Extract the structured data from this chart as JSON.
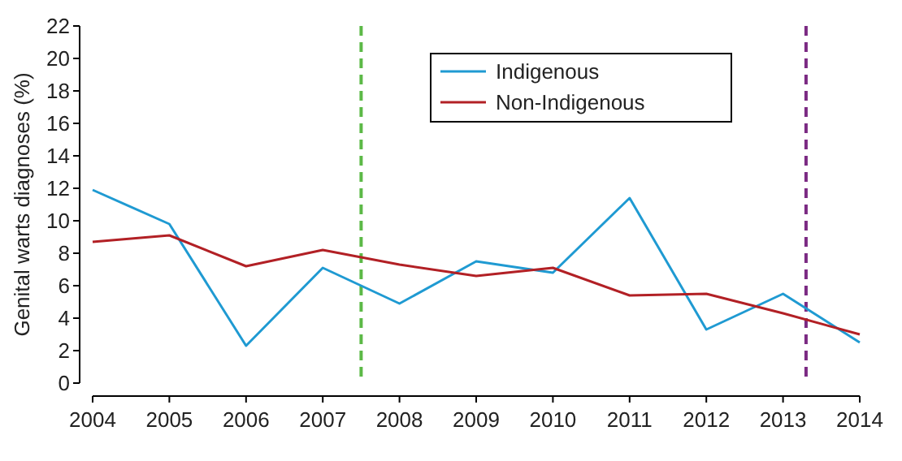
{
  "chart_data": {
    "type": "line",
    "ylabel": "Genital warts diagnoses (%)",
    "x": [
      2004,
      2005,
      2006,
      2007,
      2008,
      2009,
      2010,
      2011,
      2012,
      2013,
      2014
    ],
    "xlim": [
      2004,
      2014
    ],
    "xticks": [
      2004,
      2005,
      2006,
      2007,
      2008,
      2009,
      2010,
      2011,
      2012,
      2013,
      2014
    ],
    "ylim": [
      0,
      22
    ],
    "yticks": [
      0,
      2,
      4,
      6,
      8,
      10,
      12,
      14,
      16,
      18,
      20,
      22
    ],
    "series": [
      {
        "name": "Indigenous",
        "color": "#1f9ad2",
        "values": [
          11.9,
          9.8,
          2.3,
          7.1,
          4.9,
          7.5,
          6.8,
          11.4,
          3.3,
          5.5,
          2.5
        ]
      },
      {
        "name": "Non-Indigenous",
        "color": "#b22025",
        "values": [
          8.7,
          9.1,
          7.2,
          8.2,
          7.3,
          6.6,
          7.1,
          5.4,
          5.5,
          4.3,
          3.0
        ]
      }
    ],
    "ref_lines": [
      {
        "axis": "x",
        "value": 2007.5,
        "color": "#5cb947",
        "line_style": "dashed"
      },
      {
        "axis": "x",
        "value": 2013.3,
        "color": "#7b2a83",
        "line_style": "dashed"
      }
    ],
    "grid": false,
    "legend": "top",
    "marker": "none",
    "line_style": "solid"
  }
}
